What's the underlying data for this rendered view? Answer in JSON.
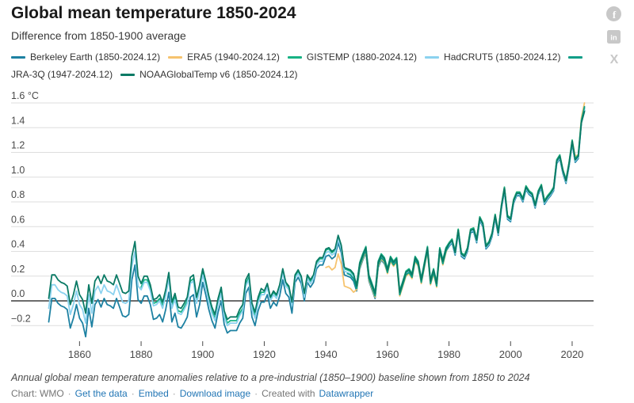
{
  "header": {
    "title": "Global mean temperature 1850-2024",
    "subtitle": "Difference from 1850-1900 average"
  },
  "social_icons": [
    {
      "name": "facebook",
      "glyph": "f"
    },
    {
      "name": "linkedin",
      "glyph": "in"
    },
    {
      "name": "x",
      "glyph": "X"
    }
  ],
  "legend": {
    "items": [
      {
        "id": "berkeley-earth",
        "label": "Berkeley Earth (1850-2024.12)",
        "color": "#1d81a2"
      },
      {
        "id": "era5",
        "label": "ERA5 (1940-2024.12)",
        "color": "#f6c36e"
      },
      {
        "id": "gistemp",
        "label": "GISTEMP (1880-2024.12)",
        "color": "#17b284"
      },
      {
        "id": "hadcrut5",
        "label": "HadCRUT5 (1850-2024.12)",
        "color": "#8bd2ef"
      },
      {
        "id": "jra-3q",
        "label": "JRA-3Q (1947-2024.12)",
        "color": "#0d9e87"
      },
      {
        "id": "noaaglobaltemp-v6",
        "label": "NOAAGlobalTemp v6 (1850-2024.12)",
        "color": "#0a7a65"
      }
    ]
  },
  "chart_data": {
    "type": "line",
    "title": "Global mean temperature 1850-2024",
    "subtitle": "Difference from 1850-1900 average",
    "unit": "°C",
    "x_start": 1850,
    "x_end": 2024,
    "ylim": [
      -0.35,
      1.65
    ],
    "baseline": 0,
    "grid": "horizontal",
    "legend_position": "top",
    "yticks": [
      {
        "value": 1.6,
        "label": "1.6 °C"
      },
      {
        "value": 1.4,
        "label": "1.4"
      },
      {
        "value": 1.2,
        "label": "1.2"
      },
      {
        "value": 1.0,
        "label": "1.0"
      },
      {
        "value": 0.8,
        "label": "0.8"
      },
      {
        "value": 0.6,
        "label": "0.6"
      },
      {
        "value": 0.4,
        "label": "0.4"
      },
      {
        "value": 0.2,
        "label": "0.2"
      },
      {
        "value": 0.0,
        "label": "0.0"
      },
      {
        "value": -0.2,
        "label": "−0.2"
      }
    ],
    "xticks": [
      1860,
      1880,
      1900,
      1920,
      1940,
      1960,
      1980,
      2000,
      2020
    ],
    "series": [
      {
        "id": "berkeley-earth",
        "name": "Berkeley Earth (1850-2024.12)",
        "color": "#1d81a2",
        "start_year": 1850,
        "values": [
          -0.17,
          0.02,
          0.02,
          -0.02,
          -0.04,
          -0.05,
          -0.07,
          -0.22,
          -0.14,
          -0.03,
          -0.14,
          -0.18,
          -0.29,
          -0.06,
          -0.21,
          -0.03,
          0.01,
          -0.05,
          0.02,
          -0.03,
          -0.04,
          -0.06,
          0.02,
          -0.05,
          -0.12,
          -0.13,
          -0.11,
          0.17,
          0.29,
          0.01,
          -0.02,
          0.04,
          0.04,
          -0.03,
          -0.15,
          -0.14,
          -0.11,
          -0.17,
          -0.07,
          0.07,
          -0.17,
          -0.1,
          -0.21,
          -0.22,
          -0.18,
          -0.13,
          0.03,
          0.05,
          -0.13,
          -0.03,
          0.15,
          0.05,
          -0.07,
          -0.16,
          -0.22,
          -0.09,
          0.0,
          -0.19,
          -0.26,
          -0.24,
          -0.24,
          -0.24,
          -0.18,
          -0.14,
          0.06,
          0.11,
          -0.13,
          -0.2,
          -0.08,
          -0.01,
          -0.01,
          0.05,
          -0.06,
          -0.01,
          -0.04,
          0.04,
          0.17,
          0.06,
          0.03,
          -0.1,
          0.15,
          0.19,
          0.14,
          0.0,
          0.15,
          0.11,
          0.15,
          0.26,
          0.29,
          0.29,
          0.36,
          0.37,
          0.34,
          0.36,
          0.47,
          0.39,
          0.21,
          0.2,
          0.19,
          0.16,
          0.08,
          0.26,
          0.33,
          0.39,
          0.16,
          0.09,
          0.02,
          0.27,
          0.33,
          0.3,
          0.23,
          0.33,
          0.29,
          0.32,
          0.05,
          0.13,
          0.21,
          0.23,
          0.19,
          0.33,
          0.29,
          0.15,
          0.28,
          0.41,
          0.14,
          0.23,
          0.12,
          0.4,
          0.3,
          0.4,
          0.44,
          0.47,
          0.37,
          0.55,
          0.36,
          0.34,
          0.4,
          0.55,
          0.56,
          0.47,
          0.65,
          0.6,
          0.42,
          0.45,
          0.52,
          0.67,
          0.53,
          0.74,
          0.89,
          0.66,
          0.64,
          0.79,
          0.85,
          0.85,
          0.8,
          0.9,
          0.86,
          0.84,
          0.75,
          0.86,
          0.91,
          0.78,
          0.82,
          0.85,
          0.89,
          1.11,
          1.15,
          1.03,
          0.95,
          1.09,
          1.27,
          1.12,
          1.15,
          1.44,
          1.54
        ]
      },
      {
        "id": "era5",
        "name": "ERA5 (1940-2024.12)",
        "color": "#f6c36e",
        "start_year": 1940,
        "values": [
          0.27,
          0.28,
          0.25,
          0.27,
          0.38,
          0.3,
          0.12,
          0.11,
          0.1,
          0.07,
          0.09,
          0.27,
          0.34,
          0.4,
          0.17,
          0.1,
          0.03,
          0.28,
          0.34,
          0.31,
          0.22,
          0.32,
          0.28,
          0.31,
          0.04,
          0.12,
          0.2,
          0.22,
          0.18,
          0.32,
          0.28,
          0.14,
          0.27,
          0.4,
          0.13,
          0.22,
          0.11,
          0.39,
          0.29,
          0.39,
          0.47,
          0.5,
          0.4,
          0.58,
          0.39,
          0.37,
          0.43,
          0.58,
          0.59,
          0.5,
          0.68,
          0.63,
          0.45,
          0.48,
          0.55,
          0.7,
          0.56,
          0.77,
          0.92,
          0.69,
          0.67,
          0.82,
          0.88,
          0.88,
          0.83,
          0.93,
          0.89,
          0.87,
          0.78,
          0.89,
          0.94,
          0.81,
          0.85,
          0.88,
          0.92,
          1.14,
          1.18,
          1.06,
          0.98,
          1.12,
          1.3,
          1.17,
          1.18,
          1.48,
          1.6
        ]
      },
      {
        "id": "gistemp",
        "name": "GISTEMP (1880-2024.12)",
        "color": "#17b284",
        "start_year": 1880,
        "values": [
          0.11,
          0.17,
          0.17,
          0.1,
          -0.02,
          -0.01,
          0.02,
          -0.04,
          0.06,
          0.2,
          -0.04,
          0.03,
          -0.08,
          -0.09,
          -0.05,
          0.0,
          0.16,
          0.18,
          0.0,
          0.1,
          0.23,
          0.13,
          0.01,
          -0.08,
          -0.14,
          -0.01,
          0.08,
          -0.11,
          -0.18,
          -0.16,
          -0.16,
          -0.16,
          -0.1,
          -0.06,
          0.14,
          0.19,
          -0.05,
          -0.12,
          0.0,
          0.07,
          0.07,
          0.13,
          0.02,
          0.07,
          0.04,
          0.12,
          0.25,
          0.14,
          0.11,
          -0.02,
          0.2,
          0.24,
          0.19,
          0.05,
          0.2,
          0.16,
          0.2,
          0.31,
          0.34,
          0.34,
          0.41,
          0.42,
          0.39,
          0.41,
          0.52,
          0.44,
          0.26,
          0.25,
          0.24,
          0.21,
          0.13,
          0.31,
          0.38,
          0.44,
          0.21,
          0.14,
          0.07,
          0.32,
          0.38,
          0.35,
          0.26,
          0.36,
          0.32,
          0.35,
          0.08,
          0.16,
          0.24,
          0.26,
          0.22,
          0.36,
          0.32,
          0.18,
          0.31,
          0.44,
          0.17,
          0.26,
          0.15,
          0.43,
          0.33,
          0.43,
          0.47,
          0.5,
          0.4,
          0.58,
          0.39,
          0.37,
          0.43,
          0.58,
          0.59,
          0.5,
          0.68,
          0.63,
          0.45,
          0.48,
          0.55,
          0.7,
          0.56,
          0.77,
          0.92,
          0.69,
          0.67,
          0.82,
          0.88,
          0.88,
          0.83,
          0.93,
          0.89,
          0.87,
          0.78,
          0.89,
          0.94,
          0.81,
          0.85,
          0.88,
          0.92,
          1.14,
          1.18,
          1.06,
          0.98,
          1.12,
          1.3,
          1.15,
          1.18,
          1.46,
          1.56
        ]
      },
      {
        "id": "hadcrut5",
        "name": "HadCRUT5 (1850-2024.12)",
        "color": "#8bd2ef",
        "start_year": 1850,
        "values": [
          -0.06,
          0.13,
          0.13,
          0.09,
          0.07,
          0.06,
          0.04,
          -0.11,
          -0.03,
          0.08,
          -0.03,
          -0.07,
          -0.18,
          0.05,
          -0.1,
          0.08,
          0.12,
          0.06,
          0.13,
          0.08,
          0.07,
          0.05,
          0.13,
          0.06,
          -0.01,
          -0.02,
          0.0,
          0.28,
          0.4,
          0.12,
          0.09,
          0.15,
          0.15,
          0.08,
          -0.04,
          -0.03,
          0.0,
          -0.06,
          0.04,
          0.18,
          -0.06,
          0.01,
          -0.1,
          -0.11,
          -0.07,
          -0.02,
          0.14,
          0.16,
          -0.02,
          0.08,
          0.21,
          0.11,
          -0.01,
          -0.1,
          -0.16,
          -0.03,
          0.06,
          -0.13,
          -0.2,
          -0.18,
          -0.18,
          -0.18,
          -0.12,
          -0.08,
          0.12,
          0.17,
          -0.07,
          -0.14,
          -0.02,
          0.05,
          0.05,
          0.11,
          0.0,
          0.05,
          0.02,
          0.1,
          0.23,
          0.12,
          0.09,
          -0.04,
          0.18,
          0.22,
          0.17,
          0.03,
          0.18,
          0.14,
          0.18,
          0.29,
          0.32,
          0.32,
          0.39,
          0.4,
          0.37,
          0.39,
          0.5,
          0.42,
          0.24,
          0.23,
          0.22,
          0.19,
          0.11,
          0.29,
          0.36,
          0.42,
          0.19,
          0.12,
          0.05,
          0.3,
          0.36,
          0.33,
          0.24,
          0.34,
          0.3,
          0.33,
          0.06,
          0.14,
          0.22,
          0.24,
          0.2,
          0.34,
          0.3,
          0.16,
          0.29,
          0.42,
          0.15,
          0.24,
          0.13,
          0.41,
          0.31,
          0.41,
          0.45,
          0.48,
          0.38,
          0.56,
          0.37,
          0.35,
          0.41,
          0.56,
          0.57,
          0.48,
          0.66,
          0.61,
          0.43,
          0.46,
          0.53,
          0.68,
          0.54,
          0.75,
          0.9,
          0.67,
          0.65,
          0.8,
          0.86,
          0.86,
          0.81,
          0.91,
          0.87,
          0.85,
          0.76,
          0.87,
          0.92,
          0.79,
          0.83,
          0.86,
          0.9,
          1.12,
          1.16,
          1.04,
          0.96,
          1.1,
          1.28,
          1.13,
          1.16,
          1.45,
          1.55
        ]
      },
      {
        "id": "jra-3q",
        "name": "JRA-3Q (1947-2024.12)",
        "color": "#0d9e87",
        "start_year": 1947,
        "values": [
          0.22,
          0.21,
          0.18,
          0.1,
          0.28,
          0.35,
          0.41,
          0.18,
          0.11,
          0.04,
          0.29,
          0.35,
          0.32,
          0.23,
          0.33,
          0.29,
          0.32,
          0.05,
          0.13,
          0.21,
          0.23,
          0.19,
          0.33,
          0.29,
          0.15,
          0.28,
          0.41,
          0.14,
          0.23,
          0.12,
          0.4,
          0.3,
          0.4,
          0.46,
          0.49,
          0.39,
          0.57,
          0.38,
          0.36,
          0.42,
          0.57,
          0.58,
          0.49,
          0.67,
          0.62,
          0.44,
          0.47,
          0.54,
          0.69,
          0.55,
          0.76,
          0.91,
          0.68,
          0.66,
          0.81,
          0.87,
          0.87,
          0.82,
          0.92,
          0.88,
          0.86,
          0.77,
          0.88,
          0.93,
          0.8,
          0.84,
          0.87,
          0.91,
          1.13,
          1.17,
          1.05,
          0.97,
          1.11,
          1.29,
          1.14,
          1.17,
          1.45,
          1.57
        ]
      },
      {
        "id": "noaaglobaltemp-v6",
        "name": "NOAAGlobalTemp v6 (1850-2024.12)",
        "color": "#0a7a65",
        "start_year": 1850,
        "values": [
          0.02,
          0.21,
          0.21,
          0.17,
          0.15,
          0.14,
          0.12,
          -0.03,
          0.05,
          0.16,
          0.05,
          0.01,
          -0.1,
          0.13,
          -0.02,
          0.16,
          0.2,
          0.14,
          0.21,
          0.16,
          0.15,
          0.13,
          0.21,
          0.14,
          0.07,
          0.06,
          0.08,
          0.36,
          0.48,
          0.2,
          0.14,
          0.2,
          0.2,
          0.13,
          0.01,
          0.02,
          0.05,
          -0.01,
          0.09,
          0.23,
          -0.01,
          0.06,
          -0.05,
          -0.06,
          -0.02,
          0.03,
          0.19,
          0.21,
          0.03,
          0.13,
          0.26,
          0.16,
          0.04,
          -0.05,
          -0.11,
          0.02,
          0.11,
          -0.08,
          -0.15,
          -0.13,
          -0.13,
          -0.13,
          -0.07,
          -0.03,
          0.17,
          0.22,
          -0.02,
          -0.09,
          0.03,
          0.1,
          0.08,
          0.14,
          0.03,
          0.08,
          0.05,
          0.13,
          0.26,
          0.15,
          0.12,
          -0.01,
          0.21,
          0.25,
          0.2,
          0.06,
          0.21,
          0.17,
          0.21,
          0.32,
          0.35,
          0.35,
          0.42,
          0.43,
          0.4,
          0.42,
          0.53,
          0.45,
          0.27,
          0.26,
          0.25,
          0.22,
          0.12,
          0.3,
          0.37,
          0.43,
          0.2,
          0.13,
          0.06,
          0.31,
          0.37,
          0.34,
          0.25,
          0.35,
          0.31,
          0.34,
          0.07,
          0.15,
          0.23,
          0.25,
          0.21,
          0.35,
          0.31,
          0.17,
          0.3,
          0.43,
          0.16,
          0.25,
          0.14,
          0.42,
          0.32,
          0.42,
          0.46,
          0.49,
          0.39,
          0.57,
          0.38,
          0.36,
          0.42,
          0.57,
          0.58,
          0.49,
          0.67,
          0.62,
          0.44,
          0.47,
          0.54,
          0.69,
          0.55,
          0.76,
          0.91,
          0.68,
          0.66,
          0.81,
          0.87,
          0.87,
          0.82,
          0.92,
          0.88,
          0.86,
          0.77,
          0.88,
          0.93,
          0.8,
          0.84,
          0.87,
          0.91,
          1.13,
          1.17,
          1.05,
          0.97,
          1.11,
          1.29,
          1.14,
          1.17,
          1.44,
          1.53
        ]
      }
    ]
  },
  "footer": {
    "note": "Annual global mean temperature anomalies relative to a pre-industrial (1850–1900) baseline shown from 1850 to 2024",
    "chart_credit": "Chart: WMO",
    "sep": "·",
    "link_get_data": "Get the data",
    "link_embed": "Embed",
    "link_download": "Download image",
    "created_with": "Created with",
    "tool": "Datawrapper"
  },
  "colors": {
    "gridline": "#dedede",
    "zero_line": "#141414",
    "axis_text": "#494949",
    "social_icon": "#c8c8c8",
    "link": "#2276b5"
  }
}
